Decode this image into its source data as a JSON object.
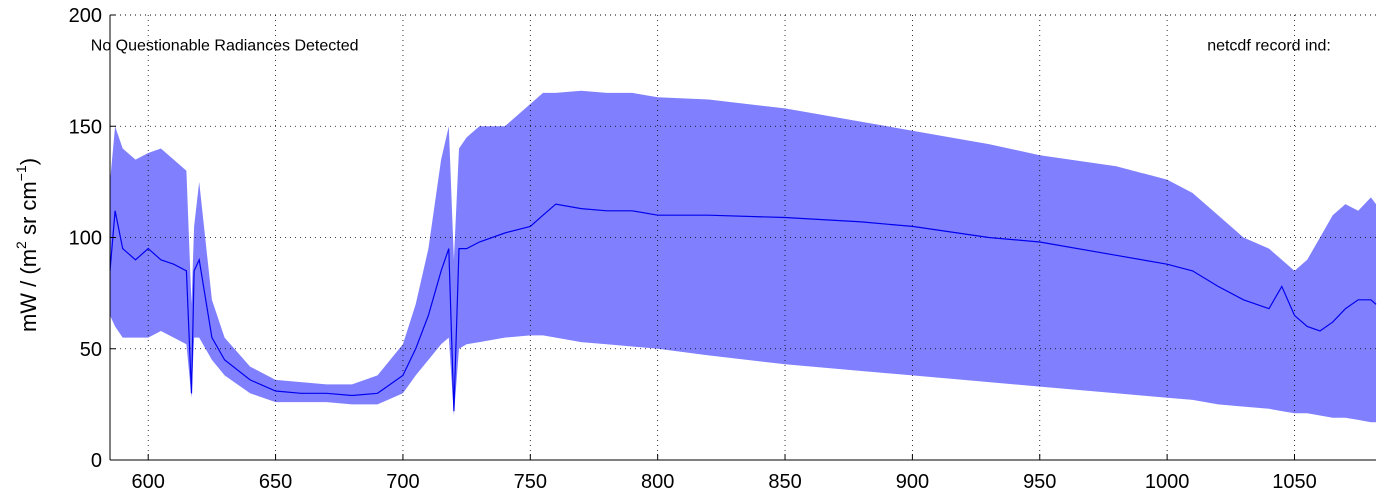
{
  "chart_data": {
    "type": "area",
    "title": "",
    "xlabel": "",
    "ylabel_parts": {
      "prefix": "mW / (m",
      "exp1": "2",
      "middle": " sr cm",
      "exp2": "−1",
      "suffix": ")"
    },
    "xlim": [
      585,
      1082
    ],
    "ylim": [
      0,
      200
    ],
    "xticks": [
      600,
      650,
      700,
      750,
      800,
      850,
      900,
      950,
      1000,
      1050
    ],
    "yticks": [
      0,
      50,
      100,
      150,
      200
    ],
    "grid": true,
    "colors": {
      "band": "#8080ff",
      "mean": "#0000ee",
      "axis": "#000000",
      "grid": "#000000"
    },
    "annotations": [
      {
        "text": "No Questionable Radiances Detected",
        "x": 630,
        "y": 184
      },
      {
        "text": "netcdf record ind:",
        "x": 1040,
        "y": 184
      }
    ],
    "series": [
      {
        "role": "max",
        "x": [
          585,
          587,
          590,
          595,
          600,
          605,
          610,
          615,
          617,
          618,
          620,
          625,
          630,
          640,
          650,
          660,
          670,
          680,
          690,
          700,
          705,
          710,
          715,
          718,
          720,
          722,
          725,
          730,
          740,
          750,
          755,
          760,
          770,
          780,
          790,
          800,
          820,
          850,
          880,
          900,
          930,
          950,
          980,
          1000,
          1010,
          1020,
          1030,
          1040,
          1045,
          1050,
          1055,
          1060,
          1065,
          1070,
          1075,
          1080,
          1082
        ],
        "y": [
          125,
          150,
          140,
          135,
          138,
          140,
          135,
          130,
          70,
          105,
          125,
          72,
          55,
          42,
          36,
          35,
          34,
          34,
          38,
          52,
          70,
          95,
          135,
          150,
          90,
          140,
          145,
          150,
          150,
          160,
          165,
          165,
          166,
          165,
          165,
          163,
          162,
          158,
          152,
          148,
          142,
          137,
          132,
          126,
          120,
          110,
          100,
          95,
          90,
          85,
          90,
          100,
          110,
          115,
          112,
          118,
          115
        ]
      },
      {
        "role": "mean",
        "x": [
          585,
          587,
          590,
          595,
          600,
          605,
          610,
          615,
          617,
          618,
          620,
          625,
          630,
          640,
          650,
          660,
          670,
          680,
          690,
          700,
          705,
          710,
          715,
          718,
          720,
          722,
          725,
          730,
          740,
          750,
          755,
          760,
          770,
          780,
          790,
          800,
          820,
          850,
          880,
          900,
          930,
          950,
          980,
          1000,
          1010,
          1020,
          1030,
          1040,
          1045,
          1050,
          1055,
          1060,
          1065,
          1070,
          1075,
          1080,
          1082
        ],
        "y": [
          85,
          112,
          95,
          90,
          95,
          90,
          88,
          85,
          30,
          85,
          90,
          55,
          45,
          36,
          31,
          30,
          30,
          29,
          30,
          38,
          50,
          65,
          85,
          95,
          22,
          95,
          95,
          98,
          102,
          105,
          110,
          115,
          113,
          112,
          112,
          110,
          110,
          109,
          107,
          105,
          100,
          98,
          92,
          88,
          85,
          78,
          72,
          68,
          78,
          65,
          60,
          58,
          62,
          68,
          72,
          72,
          70
        ]
      },
      {
        "role": "min",
        "x": [
          585,
          587,
          590,
          595,
          600,
          605,
          610,
          615,
          617,
          618,
          620,
          625,
          630,
          640,
          650,
          660,
          670,
          680,
          690,
          700,
          705,
          710,
          715,
          718,
          720,
          722,
          725,
          730,
          740,
          750,
          755,
          760,
          770,
          780,
          790,
          800,
          820,
          850,
          880,
          900,
          930,
          950,
          980,
          1000,
          1010,
          1020,
          1030,
          1040,
          1045,
          1050,
          1055,
          1060,
          1065,
          1070,
          1075,
          1080,
          1082
        ],
        "y": [
          65,
          60,
          55,
          55,
          55,
          58,
          55,
          52,
          28,
          55,
          55,
          45,
          38,
          30,
          26,
          26,
          26,
          25,
          25,
          30,
          38,
          45,
          52,
          55,
          20,
          50,
          52,
          53,
          55,
          56,
          56,
          55,
          53,
          52,
          51,
          50,
          47,
          43,
          40,
          38,
          35,
          33,
          30,
          28,
          27,
          25,
          24,
          23,
          22,
          21,
          21,
          20,
          19,
          19,
          18,
          17,
          17
        ]
      }
    ]
  }
}
